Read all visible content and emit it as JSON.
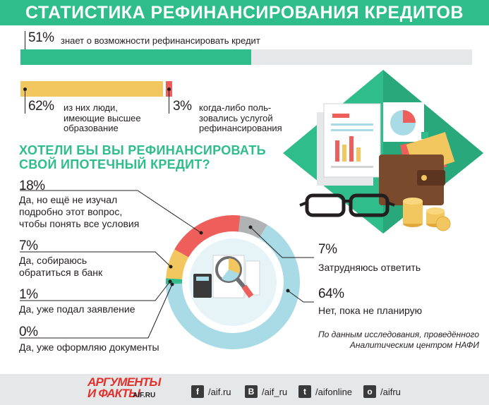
{
  "title": "СТАТИСТИКА РЕФИНАНСИРОВАНИЯ КРЕДИТОВ",
  "colors": {
    "green": "#2ebd8b",
    "yellow": "#f3c75f",
    "red": "#ee5e5a",
    "blue": "#a9dbe7",
    "grey": "#b0b2b4"
  },
  "stat1": {
    "pct": "51%",
    "label": "знает о возможности рефинансировать кредит",
    "value": 51
  },
  "stat2": {
    "pct": "62%",
    "label_lines": [
      "из них люди,",
      "имеющие высшее",
      "образование"
    ],
    "value": 62
  },
  "stat3": {
    "pct": "3%",
    "label_lines": [
      "когда-либо поль-",
      "зовались услугой",
      "рефинансирования"
    ],
    "value": 3
  },
  "question": [
    "ХОТЕЛИ БЫ ВЫ РЕФИНАНСИРОВАТЬ",
    "СВОЙ ИПОТЕЧНЫЙ КРЕДИТ?"
  ],
  "chart_data": {
    "type": "pie",
    "title": "",
    "slices": [
      {
        "pct": "18%",
        "value": 18,
        "label_lines": [
          "Да, но ещё не изучал",
          "подробно этот вопрос,",
          "чтобы понять все условия"
        ],
        "color": "#ee5e5a"
      },
      {
        "pct": "7%",
        "value": 7,
        "label_lines": [
          "Да, собираюсь",
          "обратиться в банк"
        ],
        "color": "#f3c75f"
      },
      {
        "pct": "1%",
        "value": 1,
        "label_lines": [
          "Да, уже подал заявление"
        ],
        "color": "#2ebd8b"
      },
      {
        "pct": "0%",
        "value": 0,
        "label_lines": [
          "Да, уже оформляю документы"
        ],
        "color": "#2ebd8b"
      },
      {
        "pct": "7%",
        "value": 7,
        "label_lines": [
          "Затрудняюсь ответить"
        ],
        "color": "#b0b2b4"
      },
      {
        "pct": "64%",
        "value": 64,
        "label_lines": [
          "Нет, пока не планирую"
        ],
        "color": "#a9dbe7"
      }
    ]
  },
  "source": [
    "По данным исследования, проведённого",
    "Аналитическим центром НАФИ"
  ],
  "footer": {
    "logo_line1": "АРГУМЕНТЫ",
    "logo_line2": "И ФАКТЫ",
    "logo_site": "AIF.RU",
    "social": [
      {
        "icon": "f",
        "text": "/aif.ru"
      },
      {
        "icon": "B",
        "text": "/aif_ru"
      },
      {
        "icon": "t",
        "text": "/aifonline"
      },
      {
        "icon": "o",
        "text": "/aifru"
      }
    ]
  }
}
